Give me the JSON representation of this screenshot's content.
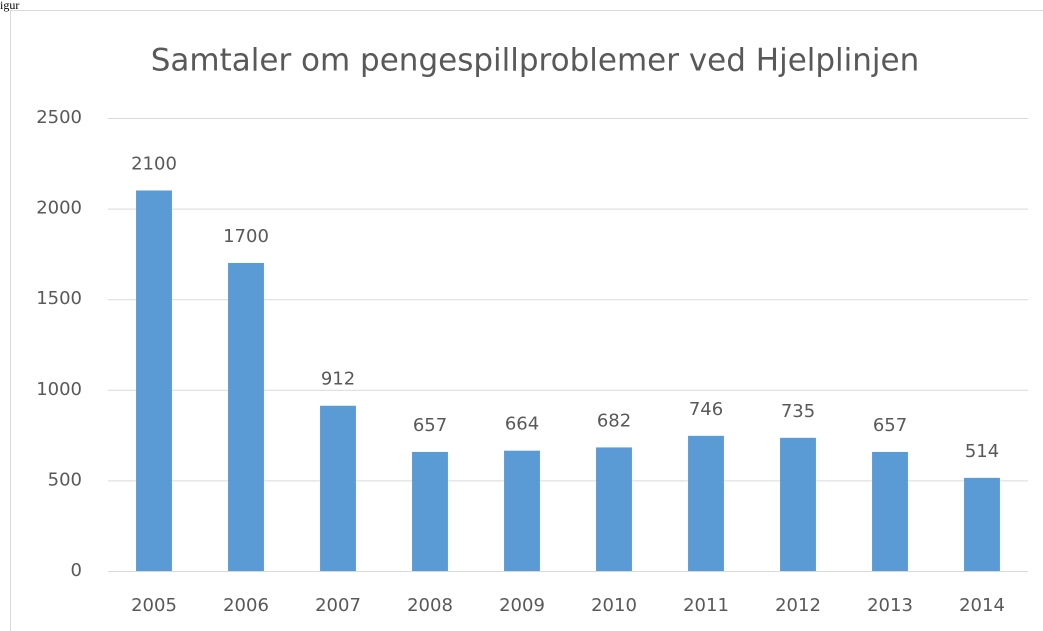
{
  "caption": "igur",
  "chart_data": {
    "type": "bar",
    "title": "Samtaler om pengespillproblemer ved Hjelplinjen",
    "categories": [
      "2005",
      "2006",
      "2007",
      "2008",
      "2009",
      "2010",
      "2011",
      "2012",
      "2013",
      "2014"
    ],
    "values": [
      2100,
      1700,
      912,
      657,
      664,
      682,
      746,
      735,
      657,
      514
    ],
    "color": "#5b9bd5",
    "ylim": [
      0,
      2500
    ],
    "yticks": [
      0,
      500,
      1000,
      1500,
      2000,
      2500
    ],
    "grid": true
  }
}
